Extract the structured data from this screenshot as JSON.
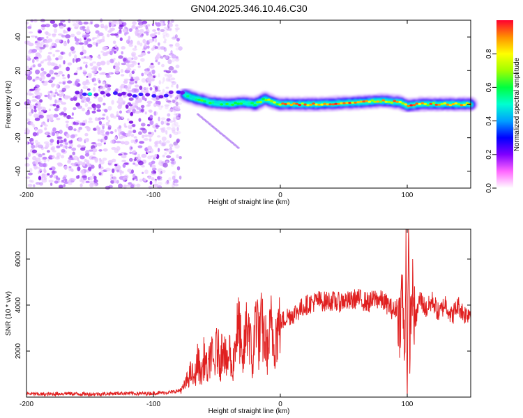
{
  "title": "GN04.2025.346.10.46.C30",
  "chart_data": [
    {
      "type": "heatmap",
      "xlabel": "Height of straight line (km)",
      "ylabel": "Frequency (Hz)",
      "xlim": [
        -200,
        150
      ],
      "ylim": [
        -50,
        50
      ],
      "xticks": [
        "-200",
        "-100",
        "0",
        "100"
      ],
      "yticks": [
        "-40",
        "-20",
        "0",
        "20",
        "40"
      ],
      "noise_region_x": [
        -200,
        -82
      ],
      "ridge": [
        {
          "x": -155,
          "y": 6
        },
        {
          "x": -120,
          "y": 6
        },
        {
          "x": -95,
          "y": 5
        },
        {
          "x": -80,
          "y": 7
        },
        {
          "x": -70,
          "y": 4
        },
        {
          "x": -55,
          "y": 1
        },
        {
          "x": -40,
          "y": 0
        },
        {
          "x": -30,
          "y": 1
        },
        {
          "x": -20,
          "y": 0
        },
        {
          "x": -12,
          "y": 3
        },
        {
          "x": -5,
          "y": 1
        },
        {
          "x": 0,
          "y": 0
        },
        {
          "x": 30,
          "y": 0
        },
        {
          "x": 60,
          "y": 1
        },
        {
          "x": 80,
          "y": 2
        },
        {
          "x": 95,
          "y": 1
        },
        {
          "x": 100,
          "y": -1
        },
        {
          "x": 110,
          "y": 0
        },
        {
          "x": 150,
          "y": 0
        }
      ],
      "colorbar": {
        "label": "Normalized spectral amplitude",
        "range": [
          0,
          1
        ],
        "ticks": [
          "0.0",
          "0.2",
          "0.4",
          "0.6",
          "0.8"
        ],
        "colors": [
          "#ffffff",
          "#ff66ff",
          "#8000ff",
          "#0000ff",
          "#00a0ff",
          "#00ffd0",
          "#00ff40",
          "#a0ff00",
          "#ffff00",
          "#ff9000",
          "#ff0030"
        ]
      }
    },
    {
      "type": "line",
      "xlabel": "Height of straight line (km)",
      "ylabel": "SNR (10 * v/v)",
      "xlim": [
        -200,
        150
      ],
      "ylim": [
        0,
        7300
      ],
      "xticks": [
        "-200",
        "-100",
        "0",
        "100"
      ],
      "yticks": [
        "2000",
        "4000",
        "6000"
      ],
      "color": "#e02020",
      "series": [
        {
          "name": "SNR",
          "x": [
            -200,
            -185,
            -170,
            -155,
            -140,
            -125,
            -110,
            -95,
            -85,
            -80,
            -77,
            -75,
            -72,
            -70,
            -68,
            -65,
            -62,
            -60,
            -57,
            -55,
            -52,
            -50,
            -47,
            -45,
            -42,
            -40,
            -38,
            -35,
            -32,
            -30,
            -27,
            -25,
            -22,
            -20,
            -19,
            -17,
            -15,
            -12,
            -10,
            -7,
            -5,
            -3,
            0,
            5,
            10,
            15,
            20,
            25,
            30,
            35,
            40,
            45,
            50,
            55,
            60,
            65,
            70,
            75,
            80,
            85,
            90,
            92,
            94,
            96,
            98,
            99,
            100,
            101,
            102,
            104,
            106,
            110,
            115,
            120,
            125,
            130,
            135,
            140,
            145,
            150
          ],
          "values": [
            150,
            120,
            160,
            130,
            140,
            170,
            150,
            180,
            220,
            280,
            350,
            550,
            900,
            1100,
            700,
            1600,
            900,
            1800,
            1000,
            2000,
            1300,
            2200,
            1500,
            2700,
            1200,
            2100,
            1000,
            2700,
            3000,
            1200,
            2900,
            3300,
            1200,
            2900,
            4200,
            2400,
            3000,
            2500,
            2000,
            3100,
            2400,
            2800,
            3200,
            3500,
            3600,
            3800,
            4000,
            4100,
            4200,
            4150,
            4200,
            4100,
            4200,
            4150,
            4300,
            4200,
            4100,
            4300,
            4200,
            4000,
            3700,
            4000,
            3200,
            4800,
            1500,
            7300,
            300,
            6800,
            2500,
            4800,
            3200,
            4300,
            3800,
            4200,
            3600,
            4100,
            3500,
            4000,
            3600,
            3700
          ]
        }
      ]
    }
  ]
}
